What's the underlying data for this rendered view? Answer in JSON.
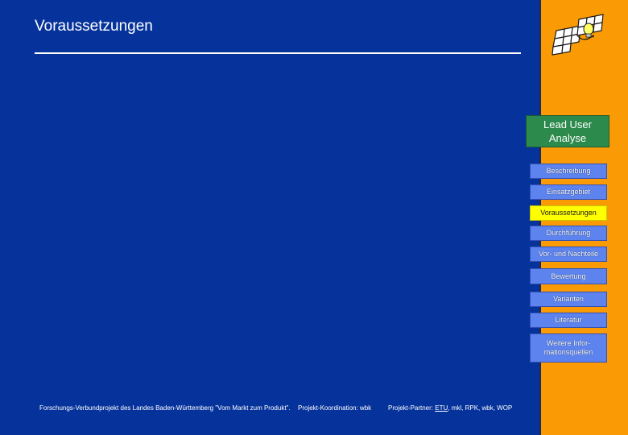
{
  "title": "Voraussetzungen",
  "section": "Lead User Analyse",
  "nav": {
    "items": [
      {
        "label": "Beschreibung"
      },
      {
        "label": "Einsatzgebiet"
      },
      {
        "label": "Voraussetzungen",
        "active": true
      },
      {
        "label": "Durchführung"
      },
      {
        "label": "Vor- und Nachteile"
      },
      {
        "label": "Bewertung"
      },
      {
        "label": "Varianten"
      },
      {
        "label": "Literatur"
      },
      {
        "label": "Weitere Infor-mationsquellen"
      }
    ]
  },
  "footer": {
    "project": "Forschungs-Verbundprojekt des Landes Baden-Württemberg \"Vom Markt zum Produkt\".",
    "coordination": "Projekt-Koordination: wbk",
    "partners_prefix": "Projekt-Partner: ",
    "partner_link": "ETU",
    "partners_suffix": ", mkl, RPK, wbk, WOP"
  },
  "colors": {
    "background": "#06339b",
    "sidebar": "#fa9b06",
    "section_box": "#2c8a4c",
    "nav_button": "#5d84ee",
    "nav_active": "#ffff00"
  }
}
